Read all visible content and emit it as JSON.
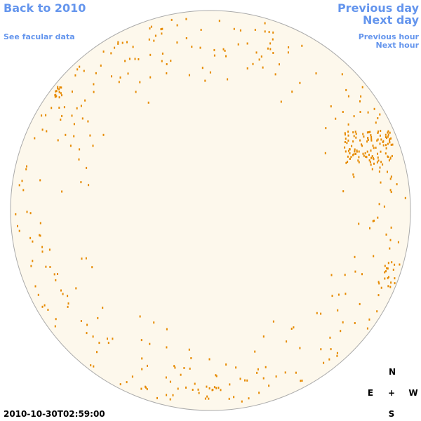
{
  "nav": {
    "back": "Back to 2010",
    "facular": "See facular data",
    "previous_day": "Previous day",
    "next_day": "Next day",
    "previous_hour": "Previous hour",
    "next_hour": "Next hour"
  },
  "compass": {
    "north": "N",
    "east": "E",
    "center": "+",
    "west": "W",
    "south": "S"
  },
  "timestamp": "2010-10-30T02:59:00"
}
